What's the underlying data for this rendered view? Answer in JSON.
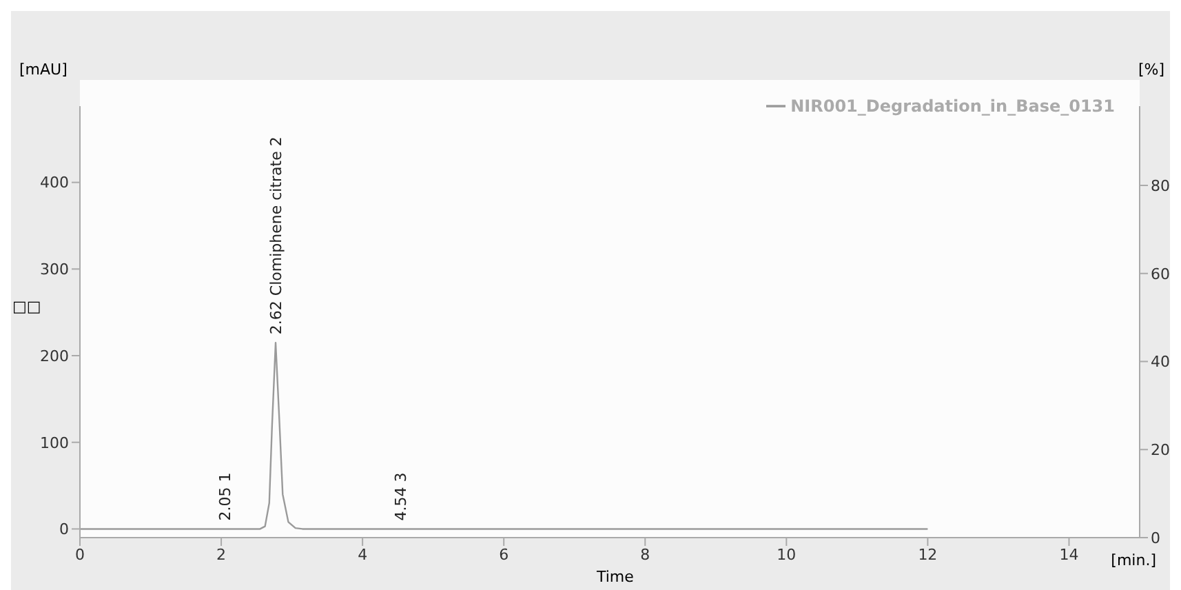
{
  "chart_data": {
    "type": "line",
    "ylabel": "[mAU]",
    "y2label": "[%]",
    "xlabel": "Time",
    "x": [
      0,
      1,
      2,
      2.55,
      2.62,
      2.68,
      2.72,
      2.77,
      2.82,
      2.87,
      2.95,
      3.05,
      3.15,
      4,
      6,
      8,
      10,
      12
    ],
    "series": [
      {
        "name": "NIR001_Degradation_in_Base_0131",
        "color": "#9a9a9a",
        "values": [
          0,
          0,
          0,
          0,
          3,
          30,
          120,
          215,
          130,
          40,
          8,
          1,
          0,
          0,
          0,
          0,
          0,
          0
        ]
      }
    ],
    "xlim": [
      0,
      15
    ],
    "xticks": [
      0,
      2,
      4,
      6,
      8,
      10,
      12,
      14
    ],
    "ylim": [
      -10,
      488
    ],
    "yticks": [
      0,
      100,
      200,
      300,
      400
    ],
    "y2lim": [
      0,
      98
    ],
    "y2ticks": [
      0,
      20,
      40,
      60,
      80
    ],
    "annotations": [
      {
        "text": "2.05  1",
        "x": 2.05,
        "y": 0
      },
      {
        "text": "2.62 Clomiphene citrate  2",
        "x": 2.77,
        "y": 215
      },
      {
        "text": "4.54  3",
        "x": 4.54,
        "y": 0
      },
      "□□",
      "[min.]"
    ],
    "legend": "top right",
    "marker": "none",
    "line_style": "solid"
  }
}
